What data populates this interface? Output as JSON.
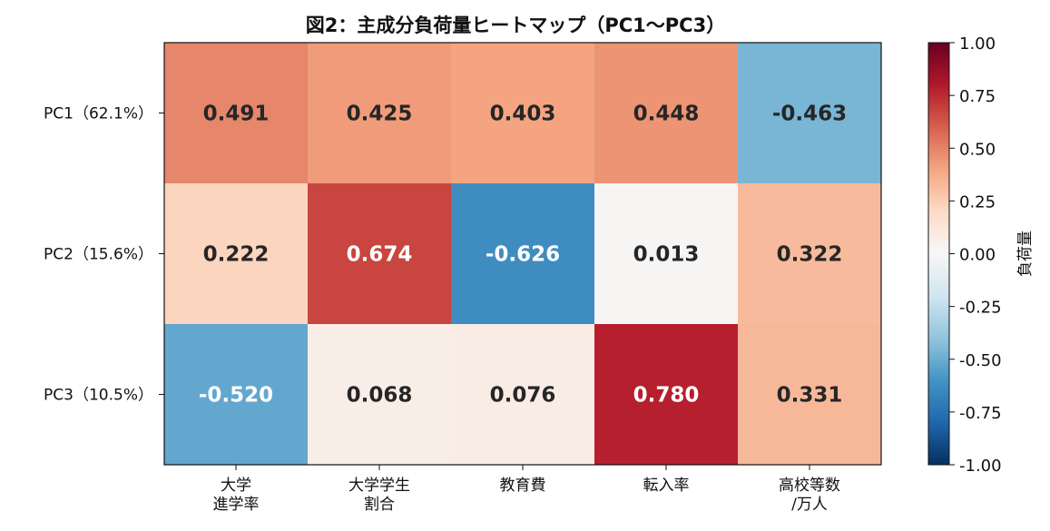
{
  "chart_data": {
    "type": "heatmap",
    "title": "図2：主成分負荷量ヒートマップ（PC1〜PC3）",
    "rows": [
      "PC1（62.1%）",
      "PC2（15.6%）",
      "PC3（10.5%）"
    ],
    "columns": [
      [
        "大学",
        "進学率"
      ],
      [
        "大学学生",
        "割合"
      ],
      [
        "教育費"
      ],
      [
        "転入率"
      ],
      [
        "高校等数",
        "/万人"
      ]
    ],
    "values": [
      [
        0.491,
        0.425,
        0.403,
        0.448,
        -0.463
      ],
      [
        0.222,
        0.674,
        -0.626,
        0.013,
        0.322
      ],
      [
        -0.52,
        0.068,
        0.076,
        0.78,
        0.331
      ]
    ],
    "value_labels": [
      [
        "0.491",
        "0.425",
        "0.403",
        "0.448",
        "-0.463"
      ],
      [
        "0.222",
        "0.674",
        "-0.626",
        "0.013",
        "0.322"
      ],
      [
        "-0.520",
        "0.068",
        "0.076",
        "0.780",
        "0.331"
      ]
    ],
    "colormap": "RdBu_r",
    "vmin": -1.0,
    "vmax": 1.0,
    "colorbar": {
      "label": "負荷量",
      "ticks": [
        "1.00",
        "0.75",
        "0.50",
        "0.25",
        "0.00",
        "-0.25",
        "-0.50",
        "-0.75",
        "-1.00"
      ]
    }
  }
}
